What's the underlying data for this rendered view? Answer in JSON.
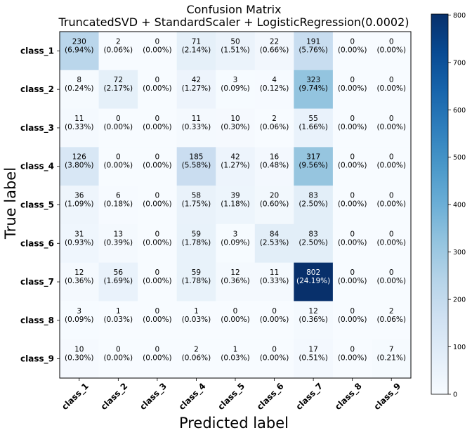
{
  "chart_data": {
    "type": "heatmap",
    "title_line1": "Confusion Matrix",
    "title_line2": "TruncatedSVD + StandardScaler + LogisticRegression(0.0002)",
    "xlabel": "Predicted label",
    "ylabel": "True label",
    "x_categories": [
      "class_1",
      "class_2",
      "class_3",
      "class_4",
      "class_5",
      "class_6",
      "class_7",
      "class_8",
      "class_9"
    ],
    "y_categories": [
      "class_1",
      "class_2",
      "class_3",
      "class_4",
      "class_5",
      "class_6",
      "class_7",
      "class_8",
      "class_9"
    ],
    "values": [
      [
        230,
        2,
        0,
        71,
        50,
        22,
        191,
        0,
        0
      ],
      [
        8,
        72,
        0,
        42,
        3,
        4,
        323,
        0,
        0
      ],
      [
        11,
        0,
        0,
        11,
        10,
        2,
        55,
        0,
        0
      ],
      [
        126,
        0,
        0,
        185,
        42,
        16,
        317,
        0,
        0
      ],
      [
        36,
        6,
        0,
        58,
        39,
        20,
        83,
        0,
        0
      ],
      [
        31,
        13,
        0,
        59,
        3,
        84,
        83,
        0,
        0
      ],
      [
        12,
        56,
        0,
        59,
        12,
        11,
        802,
        0,
        0
      ],
      [
        3,
        1,
        0,
        1,
        0,
        0,
        12,
        0,
        2
      ],
      [
        10,
        0,
        0,
        2,
        1,
        0,
        17,
        0,
        7
      ]
    ],
    "percentages": [
      [
        "(6.94%)",
        "(0.06%)",
        "(0.00%)",
        "(2.14%)",
        "(1.51%)",
        "(0.66%)",
        "(5.76%)",
        "(0.00%)",
        "(0.00%)"
      ],
      [
        "(0.24%)",
        "(2.17%)",
        "(0.00%)",
        "(1.27%)",
        "(0.09%)",
        "(0.12%)",
        "(9.74%)",
        "(0.00%)",
        "(0.00%)"
      ],
      [
        "(0.33%)",
        "(0.00%)",
        "(0.00%)",
        "(0.33%)",
        "(0.30%)",
        "(0.06%)",
        "(1.66%)",
        "(0.00%)",
        "(0.00%)"
      ],
      [
        "(3.80%)",
        "(0.00%)",
        "(0.00%)",
        "(5.58%)",
        "(1.27%)",
        "(0.48%)",
        "(9.56%)",
        "(0.00%)",
        "(0.00%)"
      ],
      [
        "(1.09%)",
        "(0.18%)",
        "(0.00%)",
        "(1.75%)",
        "(1.18%)",
        "(0.60%)",
        "(2.50%)",
        "(0.00%)",
        "(0.00%)"
      ],
      [
        "(0.93%)",
        "(0.39%)",
        "(0.00%)",
        "(1.78%)",
        "(0.09%)",
        "(2.53%)",
        "(2.50%)",
        "(0.00%)",
        "(0.00%)"
      ],
      [
        "(0.36%)",
        "(1.69%)",
        "(0.00%)",
        "(1.78%)",
        "(0.36%)",
        "(0.33%)",
        "(24.19%)",
        "(0.00%)",
        "(0.00%)"
      ],
      [
        "(0.09%)",
        "(0.03%)",
        "(0.00%)",
        "(0.03%)",
        "(0.00%)",
        "(0.00%)",
        "(0.36%)",
        "(0.00%)",
        "(0.06%)"
      ],
      [
        "(0.30%)",
        "(0.00%)",
        "(0.00%)",
        "(0.06%)",
        "(0.03%)",
        "(0.00%)",
        "(0.51%)",
        "(0.00%)",
        "(0.21%)"
      ]
    ],
    "colormap": "Blues",
    "color_range": [
      0,
      802
    ],
    "colorbar_ticks": [
      0,
      100,
      200,
      300,
      400,
      500,
      600,
      700,
      800
    ],
    "text_colors": {
      "dark_cell": "#ffffff",
      "light_cell": "#000000"
    },
    "grid": false
  }
}
